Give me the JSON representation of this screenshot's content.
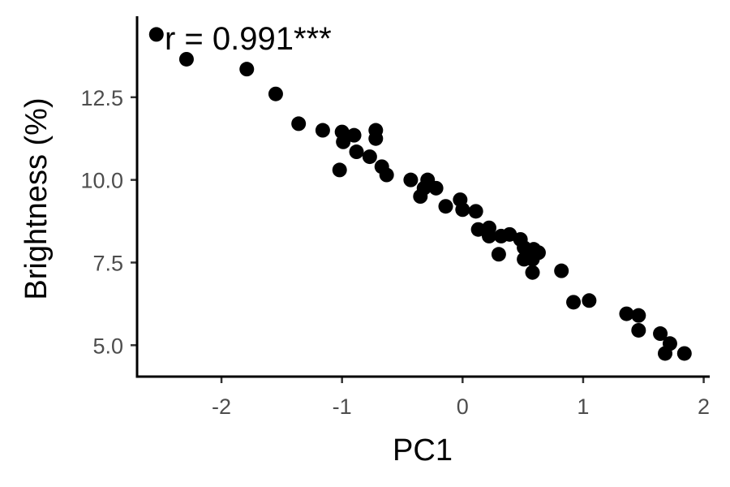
{
  "chart_data": {
    "type": "scatter",
    "xlabel": "PC1",
    "ylabel": "Brightness (%)",
    "xlim": [
      -2.7,
      2.05
    ],
    "ylim": [
      4.05,
      14.95
    ],
    "x_ticks": [
      -2,
      -1,
      0,
      1,
      2
    ],
    "x_tick_labels": [
      "-2",
      "-1",
      "0",
      "1",
      "2"
    ],
    "y_ticks": [
      5.0,
      7.5,
      10.0,
      12.5
    ],
    "y_tick_labels": [
      "5.0",
      "7.5",
      "10.0",
      "12.5"
    ],
    "annotation": "r = 0.991***",
    "grid": false,
    "legend": "none",
    "point_color": "#000000",
    "points": [
      {
        "x": -2.54,
        "y": 14.4
      },
      {
        "x": -2.29,
        "y": 13.65
      },
      {
        "x": -1.79,
        "y": 13.35
      },
      {
        "x": -1.55,
        "y": 12.6
      },
      {
        "x": -1.36,
        "y": 11.7
      },
      {
        "x": -1.16,
        "y": 11.5
      },
      {
        "x": -1.0,
        "y": 11.45
      },
      {
        "x": -0.99,
        "y": 11.15
      },
      {
        "x": -0.9,
        "y": 11.35
      },
      {
        "x": -0.72,
        "y": 11.5
      },
      {
        "x": -0.72,
        "y": 11.25
      },
      {
        "x": -0.88,
        "y": 10.85
      },
      {
        "x": -0.77,
        "y": 10.7
      },
      {
        "x": -1.02,
        "y": 10.3
      },
      {
        "x": -0.67,
        "y": 10.4
      },
      {
        "x": -0.63,
        "y": 10.15
      },
      {
        "x": -0.43,
        "y": 10.0
      },
      {
        "x": -0.29,
        "y": 10.0
      },
      {
        "x": -0.32,
        "y": 9.75
      },
      {
        "x": -0.22,
        "y": 9.75
      },
      {
        "x": -0.35,
        "y": 9.5
      },
      {
        "x": -0.14,
        "y": 9.2
      },
      {
        "x": -0.02,
        "y": 9.4
      },
      {
        "x": 0.0,
        "y": 9.1
      },
      {
        "x": 0.11,
        "y": 9.05
      },
      {
        "x": 0.13,
        "y": 8.5
      },
      {
        "x": 0.22,
        "y": 8.55
      },
      {
        "x": 0.22,
        "y": 8.3
      },
      {
        "x": 0.32,
        "y": 8.3
      },
      {
        "x": 0.39,
        "y": 8.35
      },
      {
        "x": 0.48,
        "y": 8.2
      },
      {
        "x": 0.51,
        "y": 7.95
      },
      {
        "x": 0.59,
        "y": 7.9
      },
      {
        "x": 0.63,
        "y": 7.8
      },
      {
        "x": 0.3,
        "y": 7.75
      },
      {
        "x": 0.51,
        "y": 7.6
      },
      {
        "x": 0.58,
        "y": 7.6
      },
      {
        "x": 0.58,
        "y": 7.2
      },
      {
        "x": 0.82,
        "y": 7.25
      },
      {
        "x": 0.92,
        "y": 6.3
      },
      {
        "x": 1.05,
        "y": 6.35
      },
      {
        "x": 1.36,
        "y": 5.95
      },
      {
        "x": 1.46,
        "y": 5.9
      },
      {
        "x": 1.46,
        "y": 5.45
      },
      {
        "x": 1.64,
        "y": 5.35
      },
      {
        "x": 1.72,
        "y": 5.05
      },
      {
        "x": 1.68,
        "y": 4.75
      },
      {
        "x": 1.84,
        "y": 4.75
      }
    ]
  }
}
